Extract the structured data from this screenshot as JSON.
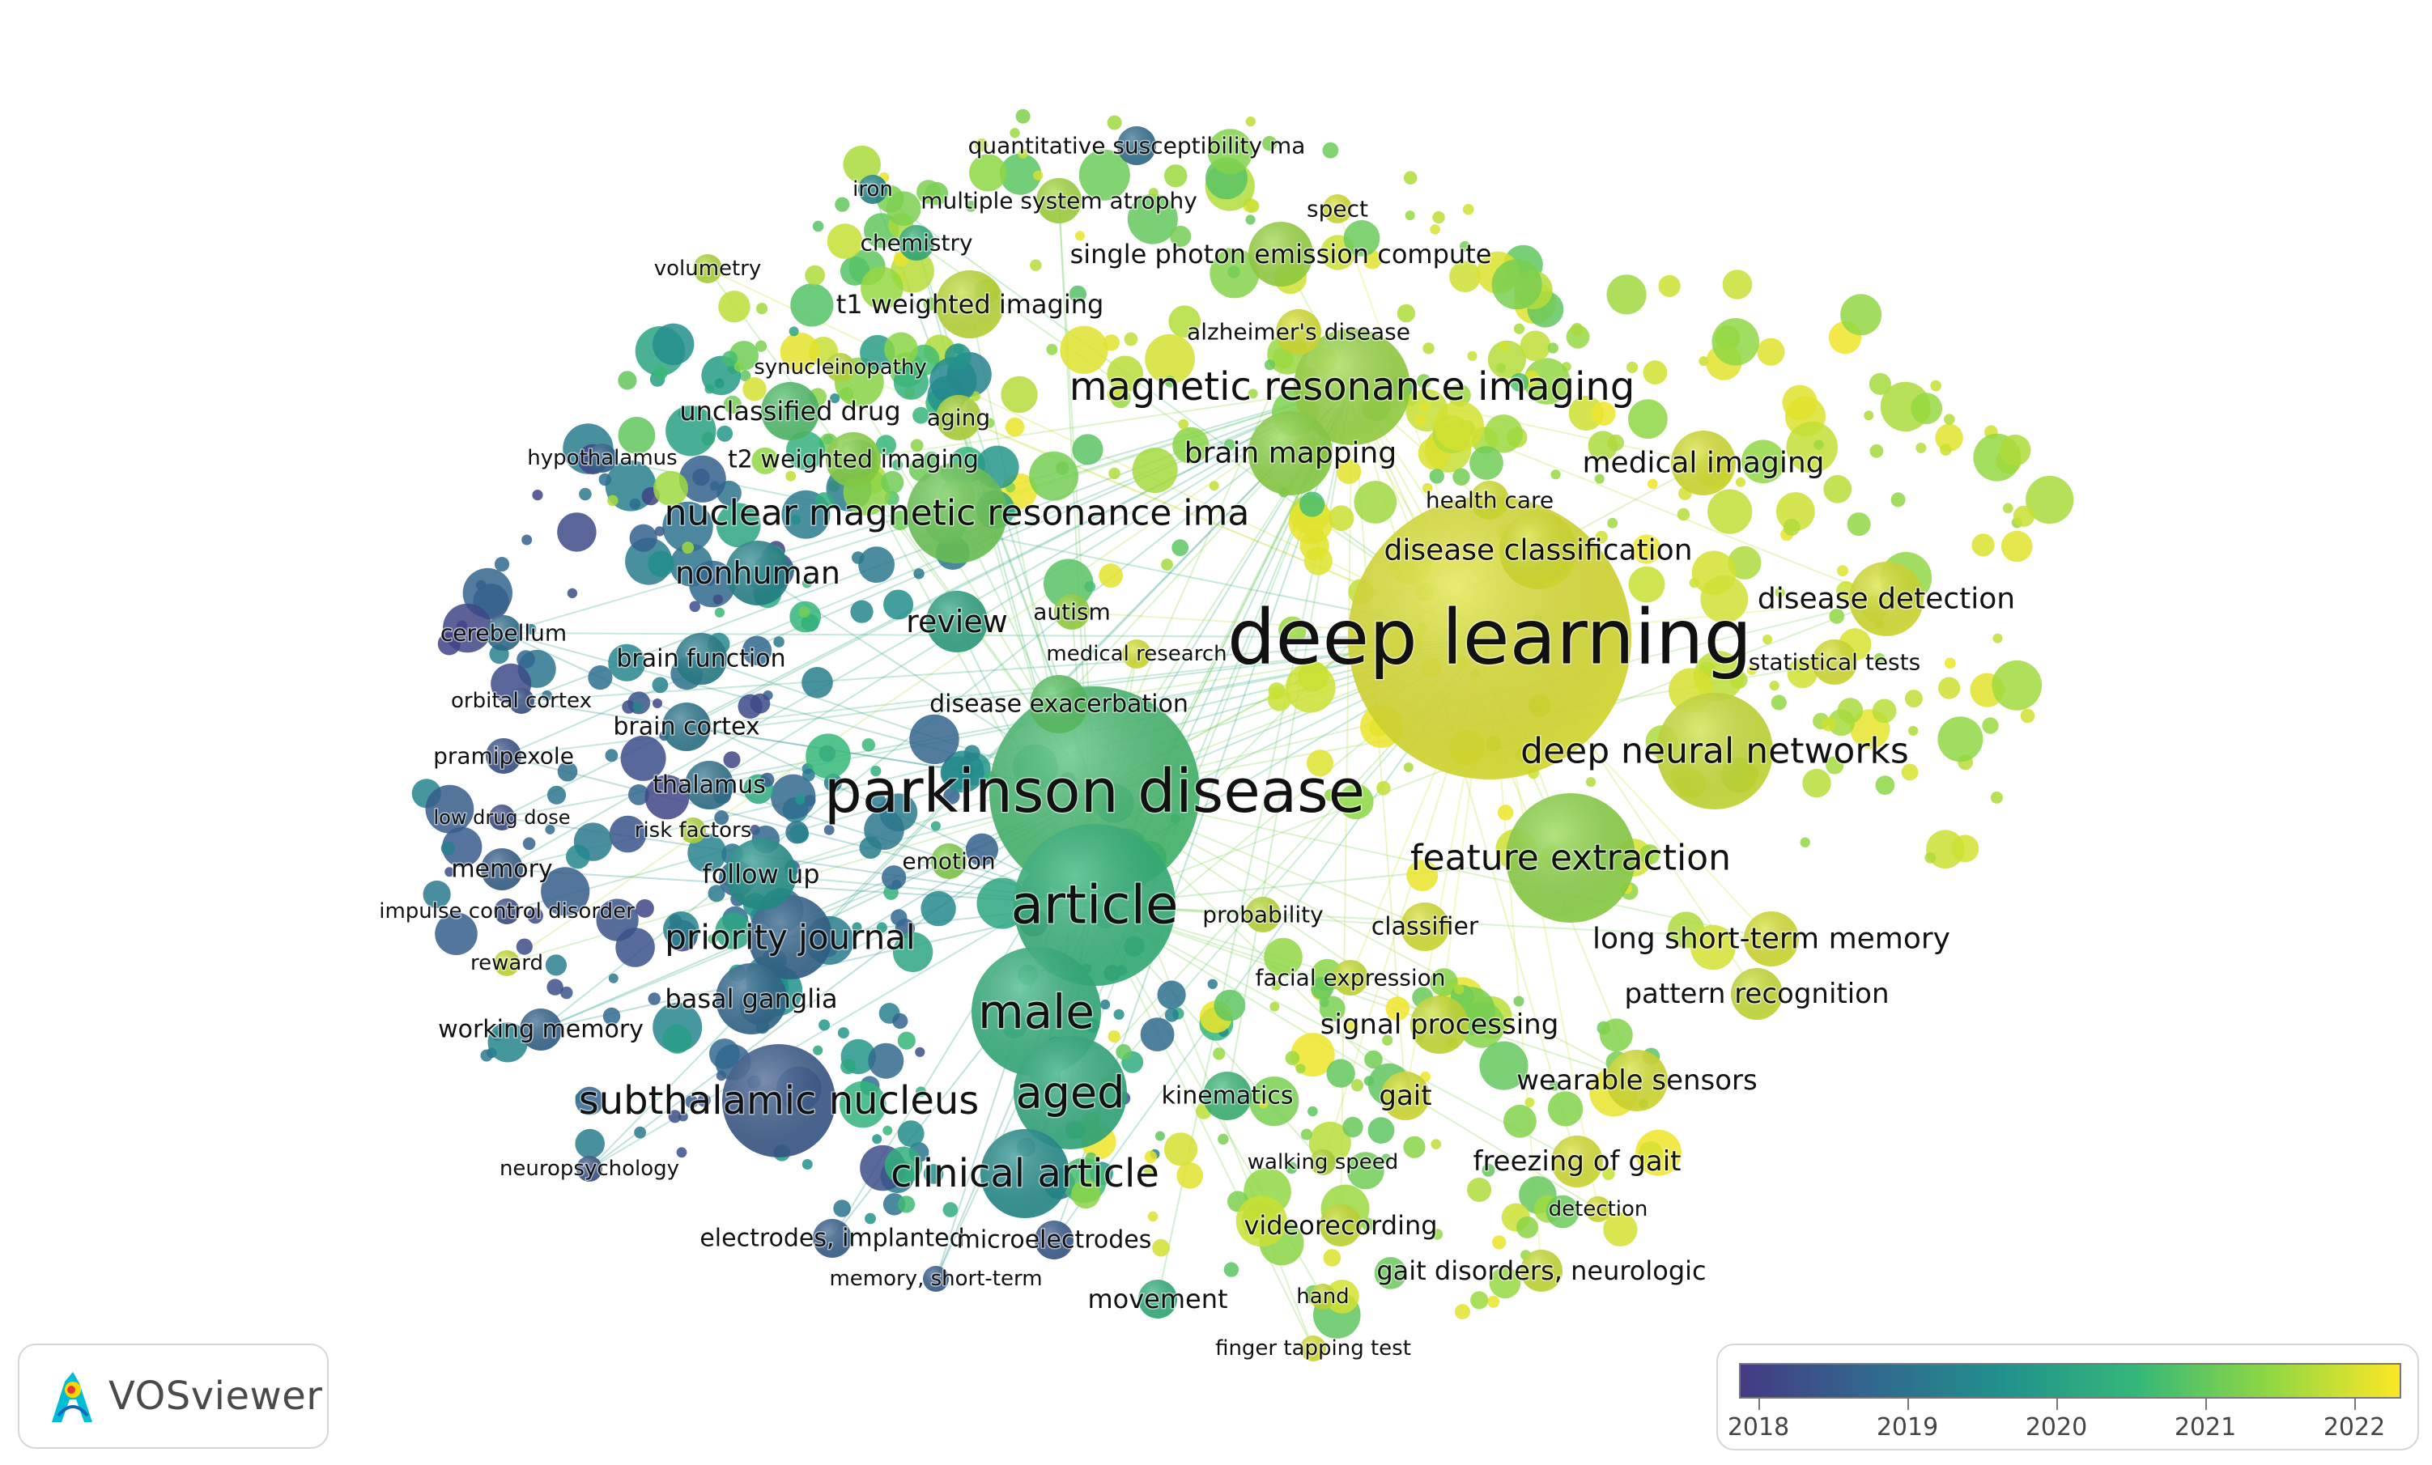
{
  "app": {
    "name": "VOSviewer",
    "logo_icon": "vosviewer-logo-icon"
  },
  "overlay_legend": {
    "colors": [
      "#443a83",
      "#31688e",
      "#21918c",
      "#35b779",
      "#8fd744",
      "#fde725"
    ],
    "years": [
      "2018",
      "2019",
      "2020",
      "2021",
      "2022"
    ]
  },
  "keywords": [
    {
      "label": "deep learning",
      "year": 2021.95,
      "weight": 10
    },
    {
      "label": "parkinson disease",
      "year": 2020.6,
      "weight": 10
    },
    {
      "label": "article",
      "year": 2020.4,
      "weight": 8
    },
    {
      "label": "male",
      "year": 2020.3,
      "weight": 7
    },
    {
      "label": "aged",
      "year": 2020.2,
      "weight": 6
    },
    {
      "label": "subthalamic nucleus",
      "year": 2018.4,
      "weight": 6
    },
    {
      "label": "clinical article",
      "year": 2019.5,
      "weight": 5
    },
    {
      "label": "magnetic resonance imaging",
      "year": 2021.4,
      "weight": 6
    },
    {
      "label": "nuclear magnetic resonance ima",
      "year": 2021.0,
      "weight": 6
    },
    {
      "label": "deep neural networks",
      "year": 2021.8,
      "weight": 6
    },
    {
      "label": "feature extraction",
      "year": 2021.3,
      "weight": 6
    },
    {
      "label": "priority journal",
      "year": 2018.6,
      "weight": 5
    },
    {
      "label": "review",
      "year": 2020.0,
      "weight": 4
    },
    {
      "label": "nonhuman",
      "year": 2019.3,
      "weight": 4
    },
    {
      "label": "disease classification",
      "year": 2021.9,
      "weight": 4
    },
    {
      "label": "disease detection",
      "year": 2021.9,
      "weight": 4
    },
    {
      "label": "medical imaging",
      "year": 2021.9,
      "weight": 4
    },
    {
      "label": "brain mapping",
      "year": 2021.3,
      "weight": 4
    },
    {
      "label": "long short-term memory",
      "year": 2021.9,
      "weight": 4
    },
    {
      "label": "pattern recognition",
      "year": 2021.8,
      "weight": 4
    },
    {
      "label": "signal processing",
      "year": 2021.8,
      "weight": 4
    },
    {
      "label": "wearable sensors",
      "year": 2021.9,
      "weight": 4
    },
    {
      "label": "freezing of gait",
      "year": 2021.9,
      "weight": 4
    },
    {
      "label": "gait",
      "year": 2021.9,
      "weight": 4
    },
    {
      "label": "gait disorders, neurologic",
      "year": 2021.8,
      "weight": 3
    },
    {
      "label": "videorecording",
      "year": 2021.8,
      "weight": 3
    },
    {
      "label": "movement",
      "year": 2020.3,
      "weight": 3
    },
    {
      "label": "single photon emission compute",
      "year": 2021.4,
      "weight": 4
    },
    {
      "label": "t1 weighted imaging",
      "year": 2021.7,
      "weight": 4
    },
    {
      "label": "unclassified drug",
      "year": 2020.7,
      "weight": 3
    },
    {
      "label": "t2 weighted imaging",
      "year": 2021.3,
      "weight": 3
    },
    {
      "label": "follow up",
      "year": 2019.6,
      "weight": 4
    },
    {
      "label": "basal ganglia",
      "year": 2018.7,
      "weight": 4
    },
    {
      "label": "brain function",
      "year": 2019.2,
      "weight": 3
    },
    {
      "label": "brain cortex",
      "year": 2019.0,
      "weight": 3
    },
    {
      "label": "thalamus",
      "year": 2018.9,
      "weight": 3
    },
    {
      "label": "disease exacerbation",
      "year": 2020.8,
      "weight": 3
    },
    {
      "label": "memory",
      "year": 2018.5,
      "weight": 3
    },
    {
      "label": "working memory",
      "year": 2018.6,
      "weight": 3
    },
    {
      "label": "kinematics",
      "year": 2020.5,
      "weight": 3
    },
    {
      "label": "classifier",
      "year": 2021.9,
      "weight": 3
    },
    {
      "label": "quantitative susceptibility ma",
      "year": 2018.8,
      "weight": 3
    },
    {
      "label": "multiple system atrophy",
      "year": 2021.5,
      "weight": 3
    },
    {
      "label": "alzheimer's disease",
      "year": 2021.9,
      "weight": 3
    },
    {
      "label": "health care",
      "year": 2021.9,
      "weight": 3
    },
    {
      "label": "statistical tests",
      "year": 2021.9,
      "weight": 3
    },
    {
      "label": "chemistry",
      "year": 2020.3,
      "weight": 2
    },
    {
      "label": "aging",
      "year": 2021.6,
      "weight": 2
    },
    {
      "label": "autism",
      "year": 2021.4,
      "weight": 2
    },
    {
      "label": "electrodes, implanted",
      "year": 2018.5,
      "weight": 3
    },
    {
      "label": "microelectrodes",
      "year": 2018.4,
      "weight": 3
    },
    {
      "label": "cerebellum",
      "year": 2018.8,
      "weight": 2
    },
    {
      "label": "pramipexole",
      "year": 2018.3,
      "weight": 2
    },
    {
      "label": "emotion",
      "year": 2021.2,
      "weight": 2
    },
    {
      "label": "probability",
      "year": 2021.7,
      "weight": 2
    },
    {
      "label": "facial expression",
      "year": 2021.8,
      "weight": 2
    },
    {
      "label": "spect",
      "year": 2021.9,
      "weight": 2
    },
    {
      "label": "iron",
      "year": 2019.4,
      "weight": 2
    },
    {
      "label": "volumetry",
      "year": 2021.6,
      "weight": 2
    },
    {
      "label": "synucleinopathy",
      "year": 2021.7,
      "weight": 2
    },
    {
      "label": "hypothalamus",
      "year": 2018.6,
      "weight": 2
    },
    {
      "label": "orbital cortex",
      "year": 2018.3,
      "weight": 2
    },
    {
      "label": "low drug dose",
      "year": 2018.2,
      "weight": 2
    },
    {
      "label": "risk factors",
      "year": 2021.6,
      "weight": 2
    },
    {
      "label": "impulse control disorder",
      "year": 2018.2,
      "weight": 2
    },
    {
      "label": "reward",
      "year": 2021.8,
      "weight": 2
    },
    {
      "label": "neuropsychology",
      "year": 2018.3,
      "weight": 2
    },
    {
      "label": "memory, short-term",
      "year": 2018.5,
      "weight": 2
    },
    {
      "label": "hand",
      "year": 2021.8,
      "weight": 2
    },
    {
      "label": "finger tapping test",
      "year": 2021.9,
      "weight": 2
    },
    {
      "label": "detection",
      "year": 2021.9,
      "weight": 2
    },
    {
      "label": "walking speed",
      "year": 2021.6,
      "weight": 2
    },
    {
      "label": "medical research",
      "year": 2021.9,
      "weight": 2
    }
  ]
}
